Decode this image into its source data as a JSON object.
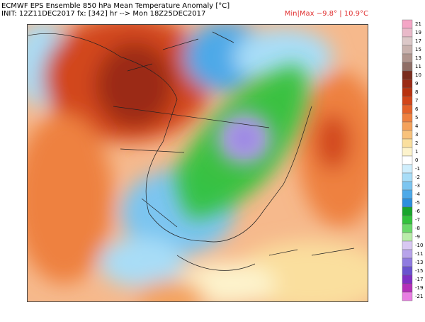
{
  "header": {
    "title": "ECMWF EPS Ensemble 850 hPa Mean Temperature Anomaly [°C]",
    "init": "INIT: 12Z11DEC2017 fx: [342] hr --> Mon 18Z25DEC2017",
    "minmax": "Min|Max −9.8° | 10.9°C"
  },
  "colorbar": {
    "labels": [
      "21",
      "19",
      "17",
      "15",
      "13",
      "11",
      "10",
      "9",
      "8",
      "7",
      "6",
      "5",
      "4",
      "3",
      "2",
      "1",
      "0",
      "-1",
      "-2",
      "-3",
      "-4",
      "-5",
      "-6",
      "-7",
      "-8",
      "-9",
      "-10",
      "-11",
      "-13",
      "-15",
      "-17",
      "-19",
      "-21"
    ],
    "colors": [
      "#f4a6c6",
      "#e9b9c9",
      "#dcc8c8",
      "#c9b2ae",
      "#b0958e",
      "#8f6e66",
      "#7a2d1e",
      "#9b2a14",
      "#b8320f",
      "#d2461a",
      "#e4622a",
      "#ee8140",
      "#f4a25c",
      "#f8c27c",
      "#fadf9e",
      "#fdf3cc",
      "#ffffff",
      "#cfeefc",
      "#a8ddf7",
      "#7cc5f0",
      "#4da9e8",
      "#2d8fdc",
      "#19a52c",
      "#33c23c",
      "#6ad86a",
      "#b9ecaa",
      "#d8c8f2",
      "#b7a3ea",
      "#8f7be0",
      "#6a52cf",
      "#7f2fc4",
      "#b42fb9",
      "#e87ee2"
    ]
  }
}
